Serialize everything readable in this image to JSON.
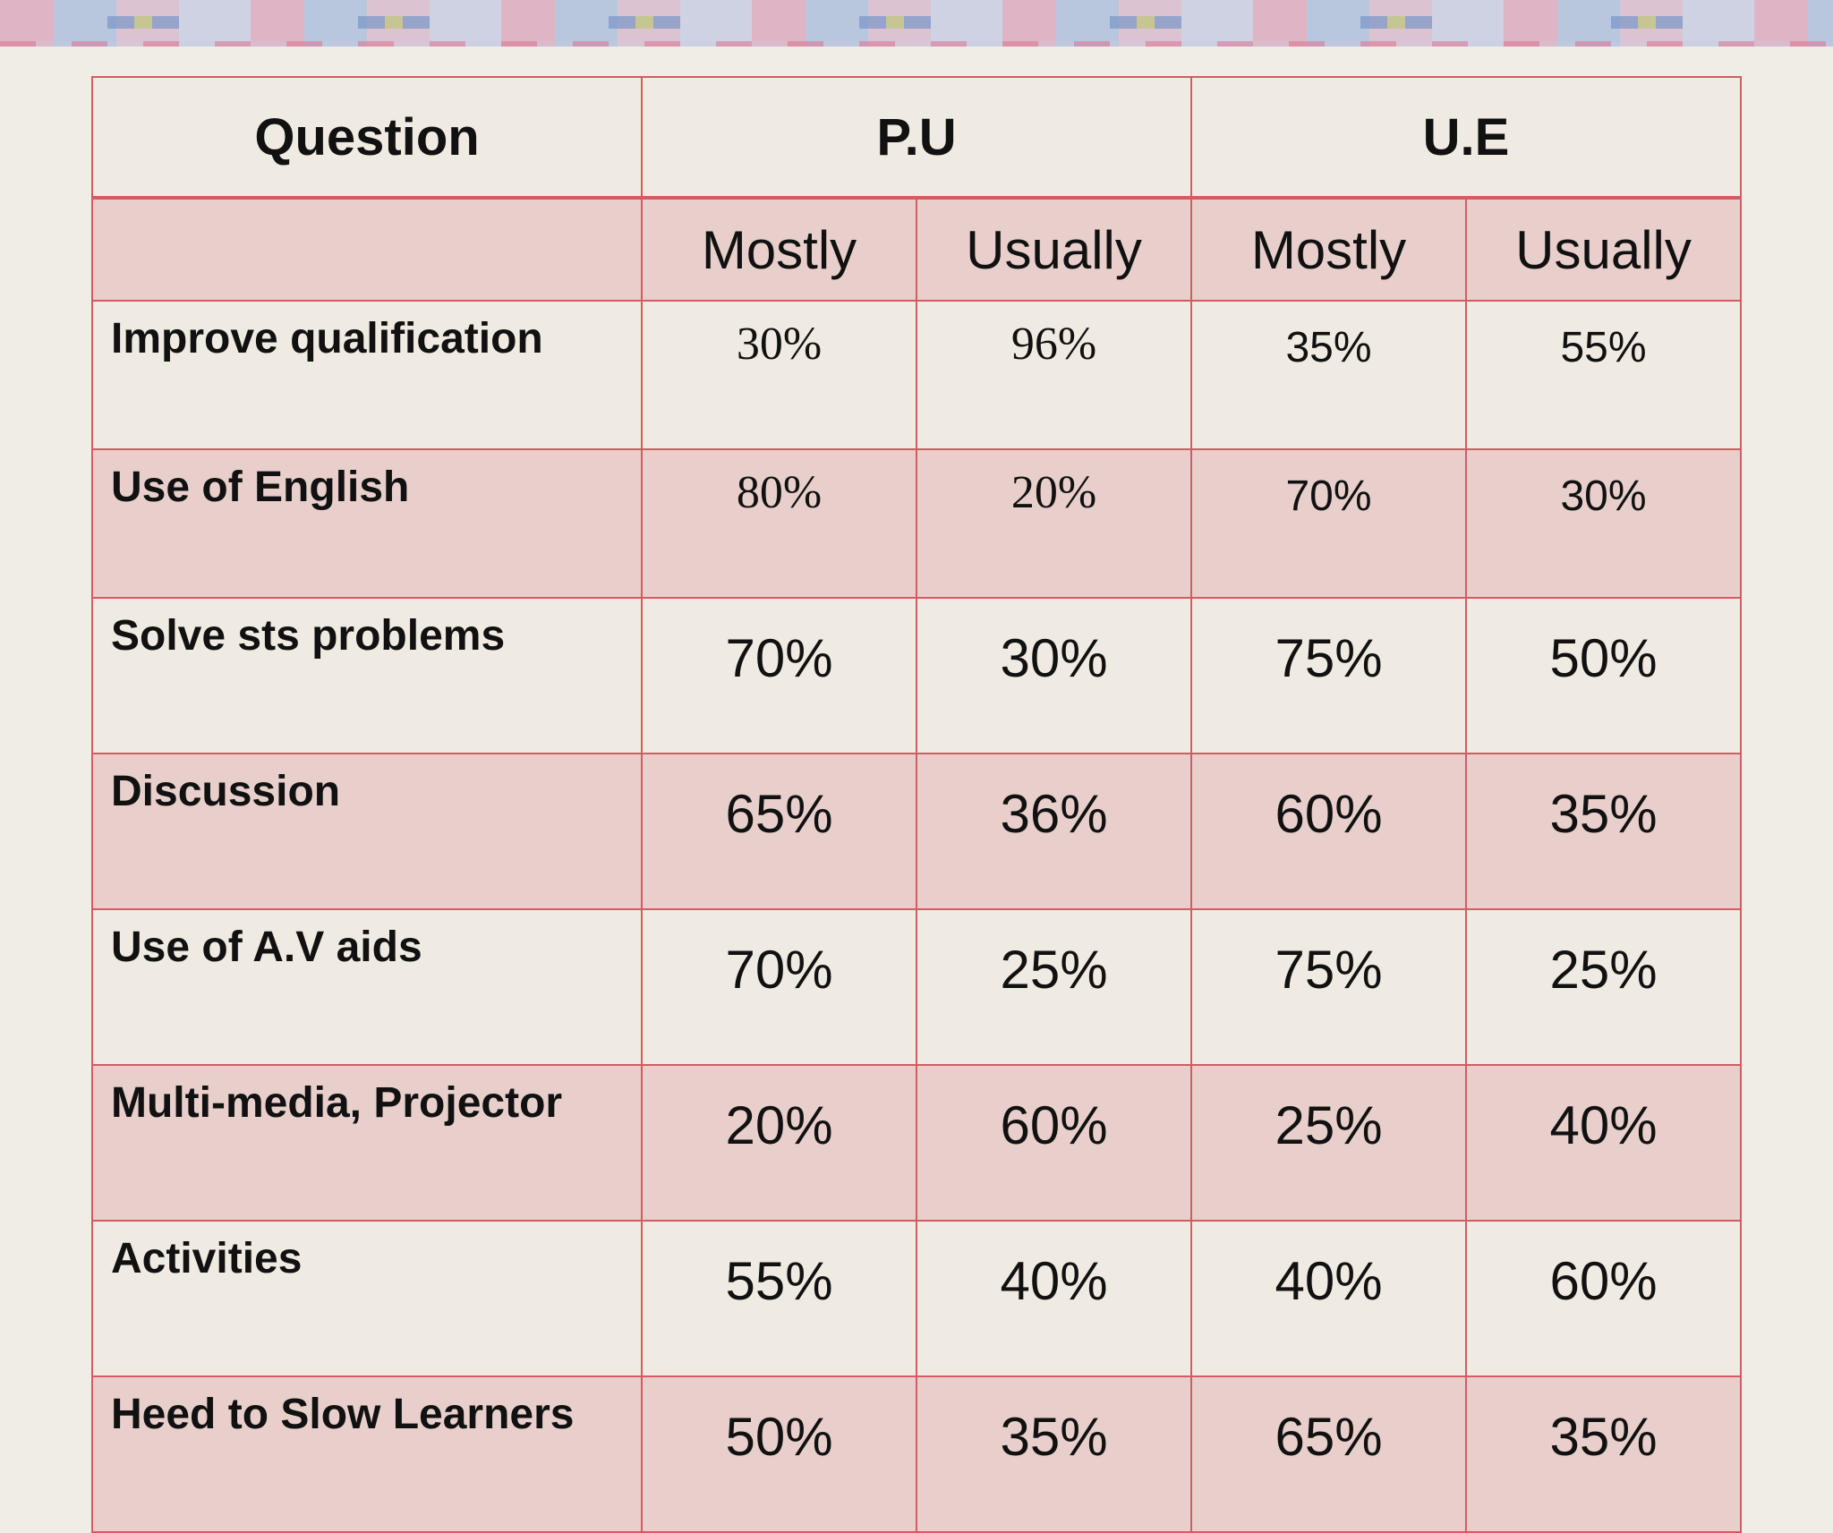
{
  "header": {
    "question": "Question",
    "group1": "P.U",
    "group2": "U.E",
    "sub": [
      "Mostly",
      "Usually",
      "Mostly",
      "Usually"
    ]
  },
  "rows": [
    {
      "label": "Improve qualification",
      "values": [
        "30%",
        "96%",
        "35%",
        "55%"
      ]
    },
    {
      "label": "Use of English",
      "values": [
        "80%",
        "20%",
        "70%",
        "30%"
      ]
    },
    {
      "label": "Solve sts problems",
      "values": [
        "70%",
        "30%",
        "75%",
        "50%"
      ]
    },
    {
      "label": "Discussion",
      "values": [
        "65%",
        "36%",
        "60%",
        "35%"
      ]
    },
    {
      "label": "Use of A.V aids",
      "values": [
        "70%",
        "25%",
        "75%",
        "25%"
      ]
    },
    {
      "label": "Multi-media, Projector",
      "values": [
        "20%",
        "60%",
        "25%",
        "40%"
      ]
    },
    {
      "label": "Activities",
      "values": [
        "55%",
        "40%",
        "40%",
        "60%"
      ]
    },
    {
      "label": "Heed to Slow Learners",
      "values": [
        "50%",
        "35%",
        "65%",
        "35%"
      ]
    }
  ]
}
